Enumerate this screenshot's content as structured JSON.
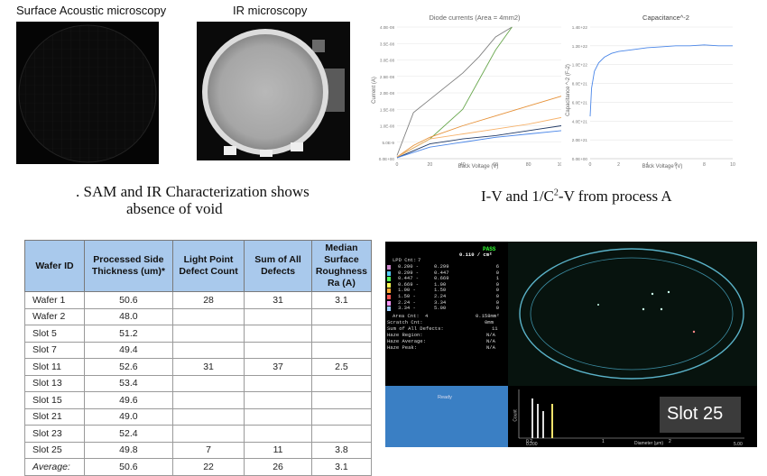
{
  "sam": {
    "label": "Surface Acoustic microscopy"
  },
  "ir": {
    "label": "IR microscopy"
  },
  "caption_left": {
    "line1": ". SAM and IR Characterization shows",
    "line2": "absence of void"
  },
  "caption_right": {
    "prefix": "I-V and 1/C",
    "sup": "2",
    "suffix": "-V from process A"
  },
  "chart_data": [
    {
      "type": "line",
      "title": "Diode currents (Area = 4mm2)",
      "xlabel": "Back Voltage (V)",
      "ylabel": "Current (A)",
      "xlim": [
        0,
        100
      ],
      "ylim": [
        0,
        4e-08
      ],
      "x_ticks": [
        "0",
        "20",
        "40",
        "60",
        "80",
        "100"
      ],
      "y_ticks": [
        "0.0E+00",
        "5.0E-9",
        "1.0E-08",
        "1.5E-08",
        "2.0E-08",
        "2.5E-08",
        "3.0E-08",
        "3.5E-08",
        "4.0E-08"
      ],
      "series": [
        {
          "color": "#7f7f7f",
          "x": [
            0,
            10,
            20,
            30,
            40,
            50,
            60,
            70
          ],
          "y": [
            1e-09,
            1.4e-08,
            1.8e-08,
            2.2e-08,
            2.6e-08,
            3.1e-08,
            3.7e-08,
            4e-08
          ]
        },
        {
          "color": "#6aa84f",
          "x": [
            0,
            20,
            40,
            50,
            60,
            70
          ],
          "y": [
            5e-10,
            6e-09,
            1.5e-08,
            2.4e-08,
            3.3e-08,
            4e-08
          ]
        },
        {
          "color": "#e69138",
          "x": [
            0,
            10,
            20,
            40,
            60,
            80,
            100
          ],
          "y": [
            5e-10,
            4e-09,
            6.5e-09,
            1e-08,
            1.3e-08,
            1.6e-08,
            1.9e-08
          ]
        },
        {
          "color": "#f6b26b",
          "x": [
            0,
            20,
            40,
            60,
            80,
            100
          ],
          "y": [
            5e-10,
            6e-09,
            7.5e-09,
            9e-09,
            1.05e-08,
            1.25e-08
          ]
        },
        {
          "color": "#1f3864",
          "x": [
            0,
            20,
            40,
            60,
            80,
            100
          ],
          "y": [
            3e-10,
            4.5e-09,
            6e-09,
            7e-09,
            8.5e-09,
            1e-08
          ]
        },
        {
          "color": "#4a86e8",
          "x": [
            0,
            20,
            40,
            60,
            80,
            100
          ],
          "y": [
            3e-10,
            3.5e-09,
            5e-09,
            6.5e-09,
            7.5e-09,
            8.5e-09
          ]
        }
      ]
    },
    {
      "type": "line",
      "title": "Capacitance^-2",
      "xlabel": "Back Voltage (V)",
      "ylabel": "Capacitance ^-2 (F-2)",
      "xlim": [
        0,
        10
      ],
      "ylim": [
        0,
        1.4e+22
      ],
      "x_ticks": [
        "0",
        "2",
        "4",
        "6",
        "8",
        "10"
      ],
      "y_ticks": [
        "0.0E+00",
        "2.0E+21",
        "4.0E+21",
        "6.0E+21",
        "8.0E+21",
        "1.0E+22",
        "1.2E+22",
        "1.4E+22"
      ],
      "series": [
        {
          "color": "#4a86e8",
          "x": [
            0,
            0.1,
            0.3,
            0.6,
            1,
            1.5,
            2,
            3,
            4,
            5,
            6,
            7,
            8,
            9,
            10
          ],
          "y": [
            4.5e+21,
            7.5e+21,
            9.3e+21,
            1.02e+22,
            1.08e+22,
            1.12e+22,
            1.14e+22,
            1.16e+22,
            1.18e+22,
            1.19e+22,
            1.2e+22,
            1.2e+22,
            1.21e+22,
            1.2e+22,
            1.2e+22
          ]
        }
      ]
    }
  ],
  "table": {
    "headers": [
      "Wafer ID",
      "Processed Side Thickness (um)*",
      "Light Point Defect Count",
      "Sum of All Defects",
      "Median Surface Roughness Ra (A)"
    ],
    "rows": [
      [
        "Wafer 1",
        "50.6",
        "28",
        "31",
        "3.1"
      ],
      [
        "Wafer 2",
        "48.0",
        "",
        "",
        ""
      ],
      [
        "Slot 5",
        "51.2",
        "",
        "",
        ""
      ],
      [
        "Slot 7",
        "49.4",
        "",
        "",
        ""
      ],
      [
        "Slot 11",
        "52.6",
        "31",
        "37",
        "2.5"
      ],
      [
        "Slot 13",
        "53.4",
        "",
        "",
        ""
      ],
      [
        "Slot 15",
        "49.6",
        "",
        "",
        ""
      ],
      [
        "Slot 21",
        "49.0",
        "",
        "",
        ""
      ],
      [
        "Slot 23",
        "52.4",
        "",
        "",
        ""
      ],
      [
        "Slot 25",
        "49.8",
        "7",
        "11",
        "3.8"
      ],
      [
        "Average:",
        "50.6",
        "22",
        "26",
        "3.1"
      ]
    ]
  },
  "monitor": {
    "slot_label": "Slot 25",
    "pass": "PASS",
    "density": "0.110 / cm²",
    "lpd_cnt_label": "LPD Cnt:",
    "lpd_cnt": "7",
    "bins": [
      [
        "0.200 -",
        "0.299",
        "6"
      ],
      [
        "0.299 -",
        "0.447",
        "0"
      ],
      [
        "0.447 -",
        "0.669",
        "1"
      ],
      [
        "0.669 -",
        "1.00",
        "0"
      ],
      [
        "1.00 -",
        "1.50",
        "0"
      ],
      [
        "1.50 -",
        "2.24",
        "0"
      ],
      [
        "2.24 -",
        "3.34",
        "0"
      ],
      [
        "3.34 -",
        "5.00",
        "0"
      ]
    ],
    "area_cnt_label": "Area Cnt:",
    "area_cnt": "4",
    "area_val": "0.158mm²",
    "scratch_label": "Scratch Cnt:",
    "scratch_val": "0mm",
    "sum_label": "Sum of All Defects:",
    "sum_val": "11",
    "haze_region": "Haze Region:",
    "haze_avg": "Haze Average:",
    "haze_peak": "Haze Peak:",
    "na": "N/A",
    "ready": "Ready",
    "xaxis_label": "Diameter (μm)",
    "yaxis_label": "Count",
    "x_start": "0.200",
    "x_end": "5.00",
    "x_tick_1": "0.2",
    "x_tick_2": "1",
    "x_tick_3": "2"
  }
}
